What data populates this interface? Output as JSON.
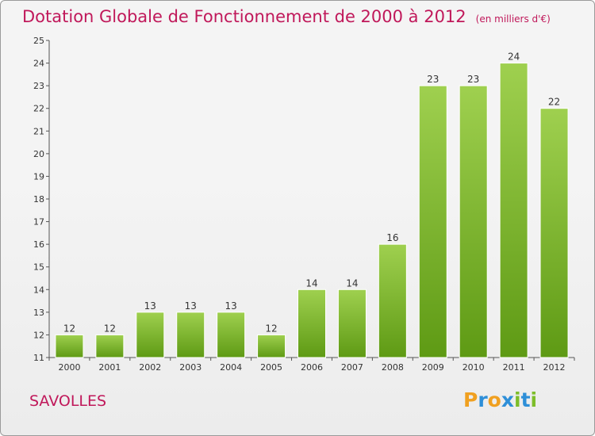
{
  "header": {
    "title": "Dotation Globale de Fonctionnement de 2000 à 2012",
    "unit": "(en milliers d'€)"
  },
  "place": "SAVOLLES",
  "logo": {
    "text": "Proxiti",
    "letters": [
      {
        "char": "P",
        "color": "#f0a020"
      },
      {
        "char": "r",
        "color": "#2e8fd8"
      },
      {
        "char": "o",
        "color": "#f0a020"
      },
      {
        "char": "x",
        "color": "#2e8fd8"
      },
      {
        "char": "i",
        "color": "#7dbd2a"
      },
      {
        "char": "t",
        "color": "#2e8fd8"
      },
      {
        "char": "i",
        "color": "#7dbd2a"
      }
    ]
  },
  "colors": {
    "title": "#c0185a",
    "bar_top": "#9fd04f",
    "bar_bottom": "#5e9a14",
    "axis": "#555555"
  },
  "chart_data": {
    "type": "bar",
    "title": "Dotation Globale de Fonctionnement de 2000 à 2012",
    "subtitle": "(en milliers d'€)",
    "xlabel": "",
    "ylabel": "",
    "categories": [
      "2000",
      "2001",
      "2002",
      "2003",
      "2004",
      "2005",
      "2006",
      "2007",
      "2008",
      "2009",
      "2010",
      "2011",
      "2012"
    ],
    "values": [
      12,
      12,
      13,
      13,
      13,
      12,
      14,
      14,
      16,
      23,
      23,
      24,
      22
    ],
    "ylim": [
      11,
      25
    ],
    "yticks": [
      11,
      12,
      13,
      14,
      15,
      16,
      17,
      18,
      19,
      20,
      21,
      22,
      23,
      24,
      25
    ],
    "grid": false,
    "legend": "none"
  }
}
